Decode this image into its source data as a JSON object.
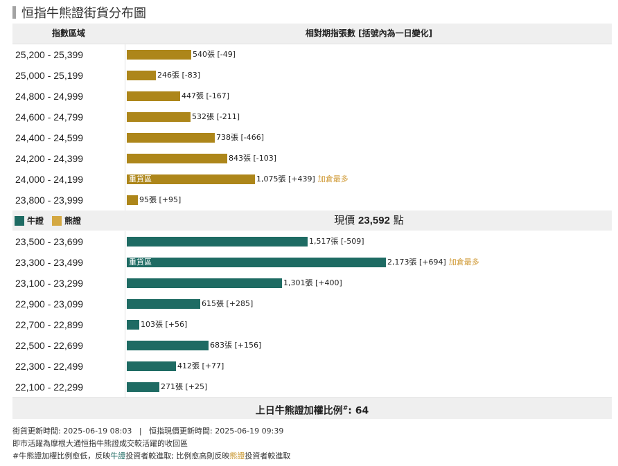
{
  "title": "恒指牛熊證街貨分布圖",
  "header": {
    "col1": "指數區域",
    "col2": "相對期指張數 [括號內為一日變化]"
  },
  "legend": {
    "bull": "牛證",
    "bear": "熊證"
  },
  "current_price": {
    "prefix": "現價",
    "value": "23,592",
    "suffix": "點"
  },
  "heavy_label": "重貨區",
  "most_added": "加倉最多",
  "footer": {
    "text": "上日牛熊證加權比例",
    "mark": "#",
    "value": ": 64"
  },
  "notes": {
    "line1": "街貨更新時間: 2025-06-19 08:03   |   恒指現價更新時間: 2025-06-19 09:39",
    "line2": "即市活躍為摩根大通恒指牛熊證成交較活躍的收回區",
    "line3_a": "#牛熊證加權比例愈低，反映",
    "line3_bull": "牛證",
    "line3_b": "投資者較進取; 比例愈高則反映",
    "line3_bear": "熊證",
    "line3_c": "投資者較進取"
  },
  "chart_data": {
    "type": "bar",
    "title": "恒指牛熊證街貨分布圖",
    "xlabel": "相對期指張數 [括號內為一日變化]",
    "ylabel": "指數區域",
    "max_value": 2173,
    "bear": [
      {
        "range": "25,200 - 25,399",
        "value": 540,
        "text": "540張 [-49]"
      },
      {
        "range": "25,000 - 25,199",
        "value": 246,
        "text": "246張 [-83]"
      },
      {
        "range": "24,800 - 24,999",
        "value": 447,
        "text": "447張 [-167]"
      },
      {
        "range": "24,600 - 24,799",
        "value": 532,
        "text": "532張 [-211]"
      },
      {
        "range": "24,400 - 24,599",
        "value": 738,
        "text": "738張 [-466]"
      },
      {
        "range": "24,200 - 24,399",
        "value": 843,
        "text": "843張 [-103]"
      },
      {
        "range": "24,000 - 24,199",
        "value": 1075,
        "text": "1,075張 [+439]",
        "heavy": true,
        "most": true
      },
      {
        "range": "23,800 - 23,999",
        "value": 95,
        "text": "95張 [+95]"
      }
    ],
    "bull": [
      {
        "range": "23,500 - 23,699",
        "value": 1517,
        "text": "1,517張 [-509]"
      },
      {
        "range": "23,300 - 23,499",
        "value": 2173,
        "text": "2,173張 [+694]",
        "heavy": true,
        "most": true
      },
      {
        "range": "23,100 - 23,299",
        "value": 1301,
        "text": "1,301張 [+400]"
      },
      {
        "range": "22,900 - 23,099",
        "value": 615,
        "text": "615張 [+285]"
      },
      {
        "range": "22,700 - 22,899",
        "value": 103,
        "text": "103張 [+56]"
      },
      {
        "range": "22,500 - 22,699",
        "value": 683,
        "text": "683張 [+156]"
      },
      {
        "range": "22,300 - 22,499",
        "value": 412,
        "text": "412張 [+77]"
      },
      {
        "range": "22,100 - 22,299",
        "value": 271,
        "text": "271張 [+25]"
      }
    ],
    "colors": {
      "bear": "#ad861a",
      "bull": "#1e6b63",
      "bear_legend": "#d4a842",
      "most_added": "#d09a36"
    }
  }
}
